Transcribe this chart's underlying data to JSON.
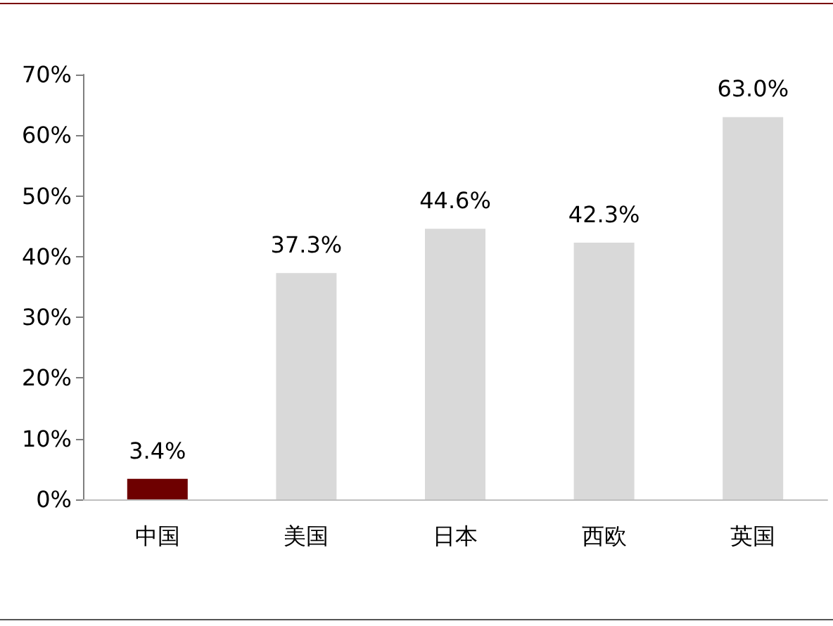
{
  "chart_data": {
    "type": "bar",
    "categories": [
      "中国",
      "美国",
      "日本",
      "西欧",
      "英国"
    ],
    "values": [
      3.4,
      37.3,
      44.6,
      42.3,
      63.0
    ],
    "colors": [
      "#6e0000",
      "#d9d9d9",
      "#d9d9d9",
      "#d9d9d9",
      "#d9d9d9"
    ],
    "value_labels": [
      "3.4%",
      "37.3%",
      "44.6%",
      "42.3%",
      "63.0%"
    ],
    "ylim": [
      0,
      70
    ],
    "yticks": [
      {
        "value": 0,
        "label": "0%"
      },
      {
        "value": 10,
        "label": "10%"
      },
      {
        "value": 20,
        "label": "20%"
      },
      {
        "value": 30,
        "label": "30%"
      },
      {
        "value": 40,
        "label": "40%"
      },
      {
        "value": 50,
        "label": "50%"
      },
      {
        "value": 60,
        "label": "60%"
      },
      {
        "value": 70,
        "label": "70%"
      }
    ],
    "grid": false
  }
}
